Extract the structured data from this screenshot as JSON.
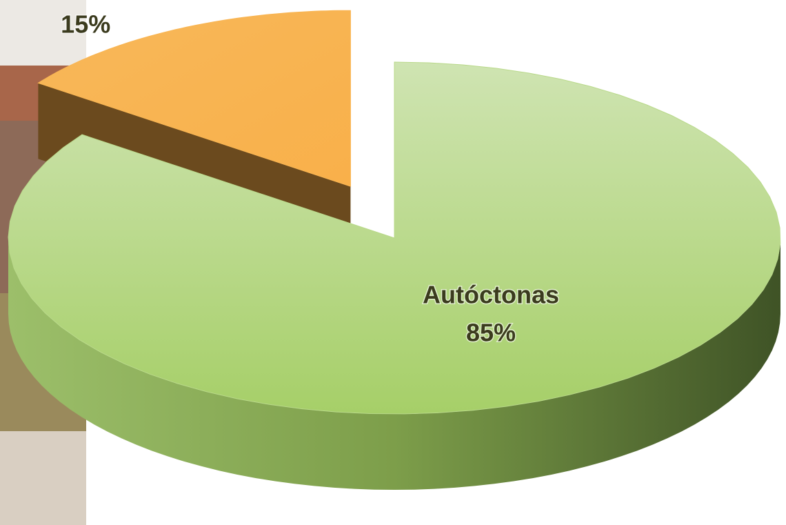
{
  "chart_data": {
    "type": "pie3d",
    "categories": [
      "Autóctonas",
      null
    ],
    "values": [
      85,
      15
    ],
    "value_labels": [
      "85%",
      "15%"
    ],
    "colors": [
      "#b9d98a",
      "#f9b552"
    ],
    "exploded": [
      false,
      true
    ]
  }
}
